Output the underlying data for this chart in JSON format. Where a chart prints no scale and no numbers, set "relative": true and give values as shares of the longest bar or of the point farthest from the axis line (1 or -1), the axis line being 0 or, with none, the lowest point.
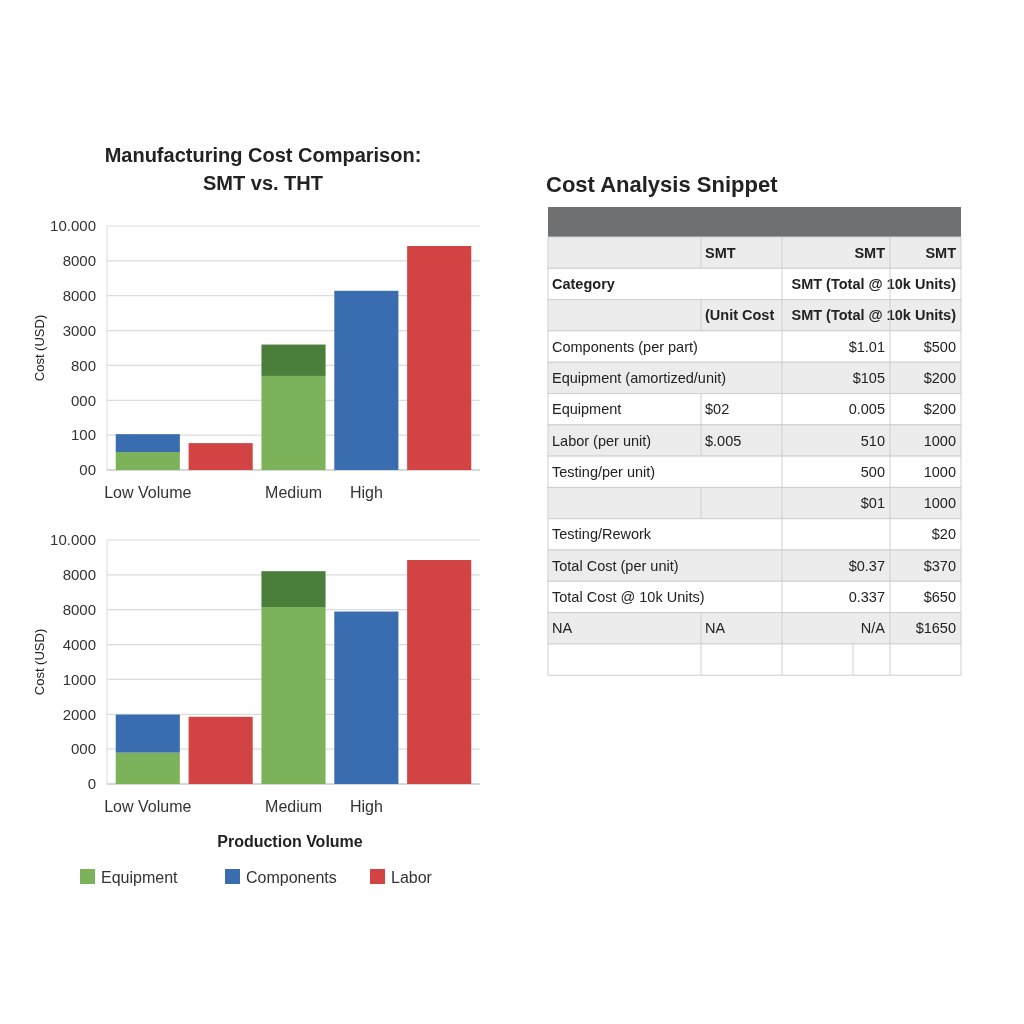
{
  "chart_data": [
    {
      "type": "bar",
      "title": "Manufacturing Cost Comparison:\nSMT vs. THT",
      "ylabel": "Cost (USD)",
      "categories": [
        "Low Volume",
        null,
        "Medium",
        "High",
        null
      ],
      "stacked": true,
      "relative": true,
      "grid": "y",
      "legend": false,
      "annotations": [
        "00",
        "100",
        "000",
        "800",
        "3000",
        "8000",
        "8000",
        "10.000"
      ],
      "series": [
        {
          "color": "#7cb35a",
          "values": [
            0.08,
            null,
            0.42,
            null,
            null
          ]
        },
        {
          "color": "#4a7e3a",
          "values": [
            null,
            null,
            0.14,
            null,
            null
          ]
        },
        {
          "color": "#3a6cb0",
          "values": [
            0.08,
            null,
            null,
            0.8,
            null
          ]
        },
        {
          "color": "#d24343",
          "values": [
            null,
            0.12,
            null,
            null,
            1
          ]
        }
      ]
    },
    {
      "type": "bar",
      "xlabel": "Production Volume",
      "ylabel": "Cost (USD)",
      "categories": [
        "Low Volume",
        null,
        "Medium",
        "High",
        null
      ],
      "stacked": true,
      "relative": true,
      "grid": "y",
      "legend": "bottom",
      "annotations": [
        "0",
        "000",
        "2000",
        "1000",
        "4000",
        "8000",
        "8000",
        "10.000"
      ],
      "series": [
        {
          "name": "Equipment",
          "color": "#7cb35a",
          "values": [
            0.14,
            null,
            0.79,
            null,
            null
          ]
        },
        {
          "color": "#4a7e3a",
          "values": [
            null,
            null,
            0.16,
            null,
            null
          ]
        },
        {
          "name": "Components",
          "color": "#3a6cb0",
          "values": [
            0.17,
            null,
            null,
            0.77,
            null
          ]
        },
        {
          "name": "Labor",
          "color": "#d24343",
          "values": [
            null,
            0.3,
            null,
            null,
            1
          ]
        }
      ]
    },
    {
      "type": "other",
      "title": "Cost Analysis Snippet",
      "cell_labels": [
        [
          null,
          "SMT",
          "SMT",
          null,
          "SMT"
        ],
        [
          "Category",
          null,
          "SMT (Total @ 10k Units)",
          null,
          null
        ],
        [
          null,
          "(Unit Cost",
          "SMT (Total @ 10k Units)",
          null,
          null
        ],
        [
          "Components (per part)",
          null,
          "$1.01",
          null,
          "$500"
        ],
        [
          "Equipment (amortized/unit)",
          null,
          "$105",
          null,
          "$200"
        ],
        [
          "Equipment",
          "$02",
          "0.005",
          null,
          "$200"
        ],
        [
          "Labor (per unit)",
          "$.005",
          "510",
          null,
          "1000"
        ],
        [
          "Testing/per unit)",
          null,
          "500",
          null,
          "1000"
        ],
        [
          null,
          null,
          "$01",
          null,
          "1000"
        ],
        [
          "Testing/Rework",
          null,
          "$20",
          null,
          null
        ],
        [
          "Total Cost (per unit)",
          null,
          "$0.37",
          null,
          "$370"
        ],
        [
          "Total Cost @ 10k Units)",
          null,
          "0.337",
          null,
          "$650"
        ],
        [
          "NA",
          "NA",
          "N/A",
          null,
          "$1650"
        ],
        [
          null,
          null,
          null,
          null,
          null
        ]
      ]
    }
  ]
}
